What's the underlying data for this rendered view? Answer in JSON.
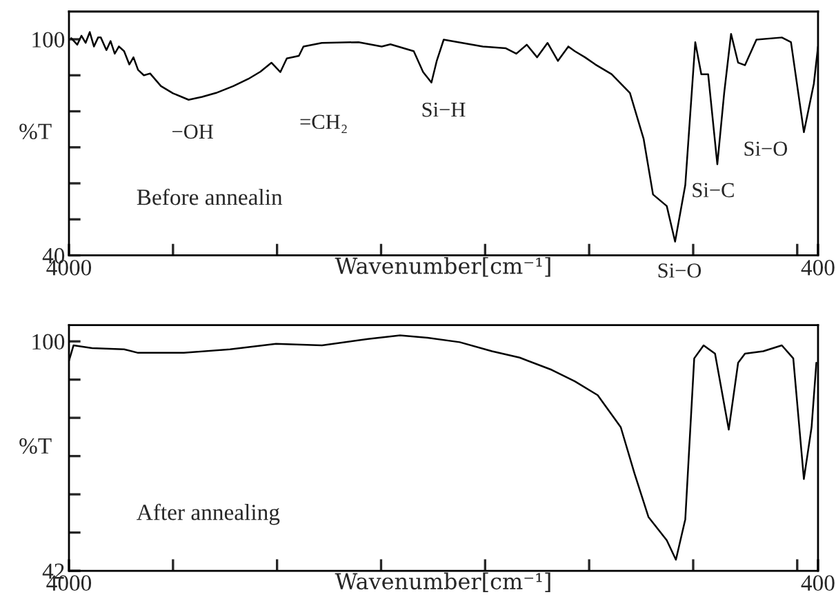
{
  "chart_data": [
    {
      "type": "line",
      "xlabel": "Wavenumber[cm⁻¹]",
      "ylabel": "%T",
      "xlim": [
        4000,
        400
      ],
      "ylim": [
        40,
        107.7
      ],
      "xticks": [
        4000,
        {
          "value": 3500,
          "label": null
        },
        {
          "value": 3000,
          "label": null
        },
        {
          "value": 2500,
          "label": null
        },
        {
          "value": 2000,
          "label": null
        },
        {
          "value": 1500,
          "label": null
        },
        {
          "value": 1000,
          "label": null
        },
        {
          "value": 500,
          "label": null
        },
        400
      ],
      "yticks": [
        40,
        {
          "value": 50,
          "label": null
        },
        {
          "value": 60,
          "label": null
        },
        {
          "value": 70,
          "label": null
        },
        {
          "value": 80,
          "label": null
        },
        {
          "value": 90,
          "label": null
        },
        100
      ],
      "grid": false,
      "marker": "none",
      "line_style": "solid",
      "annotations": [
        "Before annealin",
        "−OH",
        "=CH₂",
        "Si−H",
        "Si−C",
        "Si−O",
        "Si−O"
      ],
      "series": [
        {
          "color": "#000000",
          "x": [
            3989,
            3960,
            3940,
            3920,
            3900,
            3880,
            3860,
            3847,
            3820,
            3800,
            3780,
            3760,
            3735,
            3710,
            3690,
            3668,
            3640,
            3610,
            3558,
            3500,
            3425,
            3360,
            3293,
            3210,
            3138,
            3080,
            3027,
            2984,
            2953,
            2895,
            2873,
            2785,
            2608,
            2497,
            2455,
            2343,
            2298,
            2258,
            2232,
            2199,
            2011,
            1900,
            1850,
            1800,
            1750,
            1700,
            1650,
            1600,
            1569,
            1520,
            1470,
            1392,
            1304,
            1238,
            1193,
            1127,
            1087,
            1038,
            990,
            961,
            928,
            884,
            851,
            818,
            784,
            751,
            696,
            574,
            530,
            468,
            420,
            400
          ],
          "values": [
            100.3,
            98.5,
            101,
            99,
            102,
            98,
            100.5,
            100.5,
            97,
            99.5,
            96,
            98,
            96.7,
            93,
            95,
            91.5,
            90,
            90.5,
            87,
            85,
            83.2,
            84,
            85.1,
            87,
            89,
            91,
            93.5,
            90.9,
            94.7,
            95.4,
            98,
            99,
            99.2,
            98,
            98.6,
            96.7,
            90.9,
            88,
            94.1,
            99.9,
            98,
            97.5,
            96,
            98.5,
            95,
            99,
            94,
            98,
            96.7,
            95,
            93,
            90.3,
            85.1,
            72.3,
            56.9,
            53.7,
            43.8,
            59.5,
            99.2,
            90.3,
            90.3,
            65.3,
            85.1,
            101.5,
            93.5,
            92.8,
            99.9,
            100.5,
            99.2,
            74.2,
            87.7,
            98
          ]
        }
      ]
    },
    {
      "type": "line",
      "xlabel": "Wavenumber[cm⁻¹]",
      "ylabel": "%T",
      "xlim": [
        4000,
        400
      ],
      "ylim": [
        42,
        104.1
      ],
      "xticks": [
        4000,
        {
          "value": 3500,
          "label": null
        },
        {
          "value": 3000,
          "label": null
        },
        {
          "value": 2500,
          "label": null
        },
        {
          "value": 2000,
          "label": null
        },
        {
          "value": 1500,
          "label": null
        },
        {
          "value": 1000,
          "label": null
        },
        {
          "value": 500,
          "label": null
        },
        400
      ],
      "yticks": [
        42,
        {
          "value": 51.67,
          "label": null
        },
        {
          "value": 61.33,
          "label": null
        },
        {
          "value": 71,
          "label": null
        },
        {
          "value": 80.67,
          "label": null
        },
        {
          "value": 90.33,
          "label": null
        },
        100
      ],
      "grid": false,
      "marker": "none",
      "line_style": "solid",
      "annotations": [
        "After annealing"
      ],
      "series": [
        {
          "color": "#000000",
          "x": [
            4000,
            3978,
            3889,
            3735,
            3668,
            3448,
            3226,
            3005,
            2784,
            2563,
            2409,
            2276,
            2122,
            1967,
            1834,
            1680,
            1569,
            1459,
            1348,
            1282,
            1215,
            1127,
            1083,
            1038,
            995,
            950,
            895,
            829,
            784,
            751,
            663,
            574,
            519,
            468,
            431,
            408
          ],
          "values": [
            95.1,
            99,
            98.3,
            98,
            97.1,
            97.1,
            98,
            99.4,
            99,
            100.6,
            101.5,
            100.9,
            99.8,
            97.5,
            95.9,
            92.8,
            89.9,
            86.4,
            78.3,
            66.6,
            55.6,
            49.7,
            44.8,
            55,
            95.7,
            99,
            96.9,
            77.7,
            94.6,
            96.9,
            97.5,
            99,
            95.7,
            65.2,
            78.3,
            94.6
          ]
        }
      ]
    }
  ]
}
